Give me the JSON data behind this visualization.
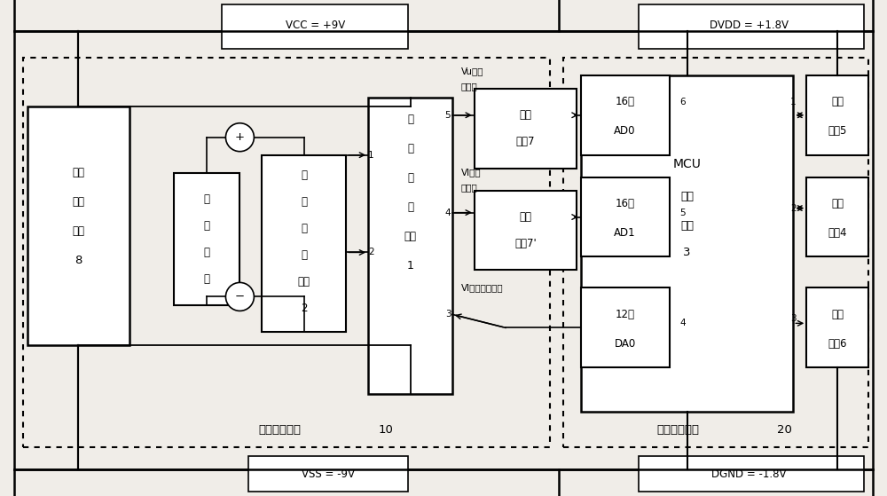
{
  "bg_color": "#f0ede8",
  "fig_width": 10.0,
  "fig_height": 5.59,
  "vcc_label": "VCC = +9V",
  "vss_label": "VSS = -9V",
  "dvdd_label": "DVDD = +1.8V",
  "dgnd_label": "DGND = -1.8V"
}
